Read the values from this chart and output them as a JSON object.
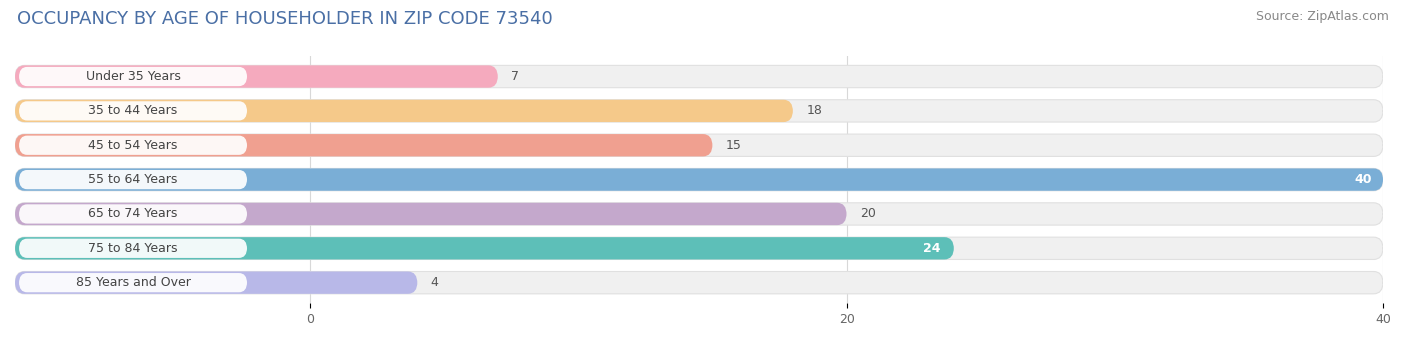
{
  "title": "OCCUPANCY BY AGE OF HOUSEHOLDER IN ZIP CODE 73540",
  "source": "Source: ZipAtlas.com",
  "categories": [
    "Under 35 Years",
    "35 to 44 Years",
    "45 to 54 Years",
    "55 to 64 Years",
    "65 to 74 Years",
    "75 to 84 Years",
    "85 Years and Over"
  ],
  "values": [
    7,
    18,
    15,
    40,
    20,
    24,
    4
  ],
  "bar_colors": [
    "#f5aabe",
    "#f5c98a",
    "#f0a090",
    "#7aaed6",
    "#c4a8cc",
    "#5dbfb8",
    "#b8b8e8"
  ],
  "xlim_min": -11,
  "xlim_max": 40,
  "xticks": [
    0,
    20,
    40
  ],
  "title_fontsize": 13,
  "source_fontsize": 9,
  "label_fontsize": 9,
  "value_fontsize": 9,
  "bar_height": 0.65,
  "bar_gap": 0.25,
  "bg_color": "#ffffff",
  "bar_bg_color": "#f0f0f0",
  "bar_bg_edge_color": "#e0e0e0",
  "grid_color": "#d8d8d8",
  "label_pill_color": "#ffffff",
  "label_text_color": "#444444",
  "value_label_color_dark": "#555555",
  "value_label_color_white": "#ffffff",
  "rounding_size": 0.35
}
